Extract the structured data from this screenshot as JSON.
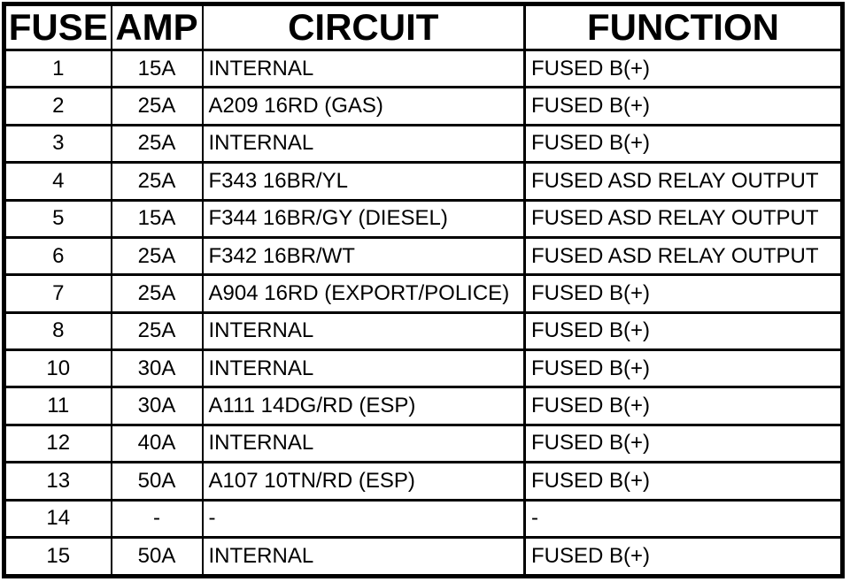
{
  "colors": {
    "background": "#ffffff",
    "border": "#000000",
    "text": "#000000"
  },
  "table": {
    "columns": [
      {
        "key": "fuse",
        "label": "FUSE"
      },
      {
        "key": "amp",
        "label": "AMP"
      },
      {
        "key": "circuit",
        "label": "CIRCUIT"
      },
      {
        "key": "function",
        "label": "FUNCTION"
      }
    ],
    "rows": [
      {
        "fuse": "1",
        "amp": "15A",
        "circuit": "INTERNAL",
        "function": "FUSED B(+)"
      },
      {
        "fuse": "2",
        "amp": "25A",
        "circuit": "A209 16RD (GAS)",
        "function": "FUSED B(+)"
      },
      {
        "fuse": "3",
        "amp": "25A",
        "circuit": "INTERNAL",
        "function": "FUSED B(+)"
      },
      {
        "fuse": "4",
        "amp": "25A",
        "circuit": "F343 16BR/YL",
        "function": "FUSED ASD RELAY OUTPUT"
      },
      {
        "fuse": "5",
        "amp": "15A",
        "circuit": "F344 16BR/GY (DIESEL)",
        "function": "FUSED ASD RELAY OUTPUT"
      },
      {
        "fuse": "6",
        "amp": "25A",
        "circuit": "F342 16BR/WT",
        "function": "FUSED ASD RELAY OUTPUT"
      },
      {
        "fuse": "7",
        "amp": "25A",
        "circuit": "A904 16RD (EXPORT/POLICE)",
        "function": "FUSED B(+)"
      },
      {
        "fuse": "8",
        "amp": "25A",
        "circuit": "INTERNAL",
        "function": "FUSED B(+)"
      },
      {
        "fuse": "10",
        "amp": "30A",
        "circuit": "INTERNAL",
        "function": "FUSED B(+)"
      },
      {
        "fuse": "11",
        "amp": "30A",
        "circuit": "A111 14DG/RD (ESP)",
        "function": "FUSED B(+)"
      },
      {
        "fuse": "12",
        "amp": "40A",
        "circuit": "INTERNAL",
        "function": "FUSED B(+)"
      },
      {
        "fuse": "13",
        "amp": "50A",
        "circuit": "A107 10TN/RD (ESP)",
        "function": "FUSED B(+)"
      },
      {
        "fuse": "14",
        "amp": "-",
        "circuit": "-",
        "function": "-"
      },
      {
        "fuse": "15",
        "amp": "50A",
        "circuit": "INTERNAL",
        "function": "FUSED B(+)"
      }
    ]
  }
}
